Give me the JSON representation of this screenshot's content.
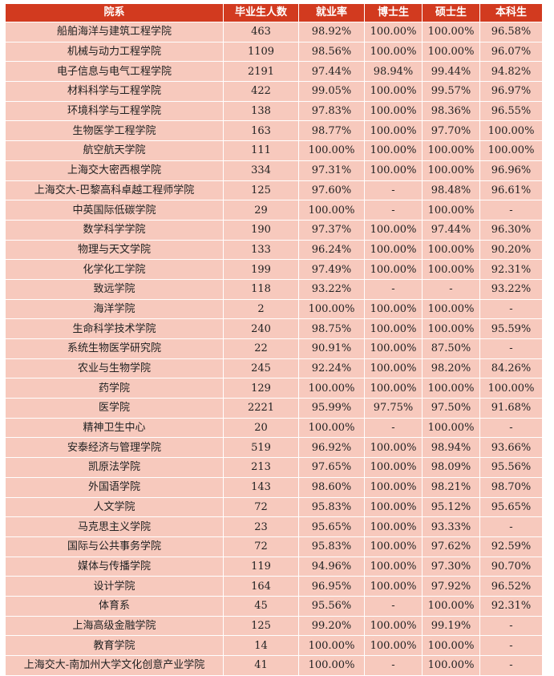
{
  "table": {
    "headers": [
      "院系",
      "毕业生人数",
      "就业率",
      "博士生",
      "硕士生",
      "本科生"
    ],
    "rows": [
      [
        "船舶海洋与建筑工程学院",
        "463",
        "98.92%",
        "100.00%",
        "100.00%",
        "96.58%"
      ],
      [
        "机械与动力工程学院",
        "1109",
        "98.56%",
        "100.00%",
        "100.00%",
        "96.07%"
      ],
      [
        "电子信息与电气工程学院",
        "2191",
        "97.44%",
        "98.94%",
        "99.44%",
        "94.82%"
      ],
      [
        "材料科学与工程学院",
        "422",
        "99.05%",
        "100.00%",
        "99.57%",
        "96.97%"
      ],
      [
        "环境科学与工程学院",
        "138",
        "97.83%",
        "100.00%",
        "98.36%",
        "96.55%"
      ],
      [
        "生物医学工程学院",
        "163",
        "98.77%",
        "100.00%",
        "97.70%",
        "100.00%"
      ],
      [
        "航空航天学院",
        "111",
        "100.00%",
        "100.00%",
        "100.00%",
        "100.00%"
      ],
      [
        "上海交大密西根学院",
        "334",
        "97.31%",
        "100.00%",
        "100.00%",
        "96.96%"
      ],
      [
        "上海交大-巴黎高科卓越工程师学院",
        "125",
        "97.60%",
        "-",
        "98.48%",
        "96.61%"
      ],
      [
        "中英国际低碳学院",
        "29",
        "100.00%",
        "-",
        "100.00%",
        "-"
      ],
      [
        "数学科学学院",
        "190",
        "97.37%",
        "100.00%",
        "97.44%",
        "96.30%"
      ],
      [
        "物理与天文学院",
        "133",
        "96.24%",
        "100.00%",
        "100.00%",
        "90.20%"
      ],
      [
        "化学化工学院",
        "199",
        "97.49%",
        "100.00%",
        "100.00%",
        "92.31%"
      ],
      [
        "致远学院",
        "118",
        "93.22%",
        "-",
        "-",
        "93.22%"
      ],
      [
        "海洋学院",
        "2",
        "100.00%",
        "100.00%",
        "100.00%",
        "-"
      ],
      [
        "生命科学技术学院",
        "240",
        "98.75%",
        "100.00%",
        "100.00%",
        "95.59%"
      ],
      [
        "系统生物医学研究院",
        "22",
        "90.91%",
        "100.00%",
        "87.50%",
        "-"
      ],
      [
        "农业与生物学院",
        "245",
        "92.24%",
        "100.00%",
        "98.20%",
        "84.26%"
      ],
      [
        "药学院",
        "129",
        "100.00%",
        "100.00%",
        "100.00%",
        "100.00%"
      ],
      [
        "医学院",
        "2221",
        "95.99%",
        "97.75%",
        "97.50%",
        "91.68%"
      ],
      [
        "精神卫生中心",
        "20",
        "100.00%",
        "-",
        "100.00%",
        "-"
      ],
      [
        "安泰经济与管理学院",
        "519",
        "96.92%",
        "100.00%",
        "98.94%",
        "93.66%"
      ],
      [
        "凯原法学院",
        "213",
        "97.65%",
        "100.00%",
        "98.09%",
        "95.56%"
      ],
      [
        "外国语学院",
        "143",
        "98.60%",
        "100.00%",
        "98.21%",
        "98.70%"
      ],
      [
        "人文学院",
        "72",
        "95.83%",
        "100.00%",
        "95.12%",
        "95.65%"
      ],
      [
        "马克思主义学院",
        "23",
        "95.65%",
        "100.00%",
        "93.33%",
        "-"
      ],
      [
        "国际与公共事务学院",
        "72",
        "95.83%",
        "100.00%",
        "97.62%",
        "92.59%"
      ],
      [
        "媒体与传播学院",
        "119",
        "94.96%",
        "100.00%",
        "97.30%",
        "90.70%"
      ],
      [
        "设计学院",
        "164",
        "96.95%",
        "100.00%",
        "97.92%",
        "96.52%"
      ],
      [
        "体育系",
        "45",
        "95.56%",
        "-",
        "100.00%",
        "92.31%"
      ],
      [
        "上海高级金融学院",
        "125",
        "99.20%",
        "100.00%",
        "99.19%",
        "-"
      ],
      [
        "教育学院",
        "14",
        "100.00%",
        "100.00%",
        "100.00%",
        "-"
      ],
      [
        "上海交大-南加州大学文化创意产业学院",
        "41",
        "100.00%",
        "-",
        "100.00%",
        "-"
      ]
    ]
  }
}
